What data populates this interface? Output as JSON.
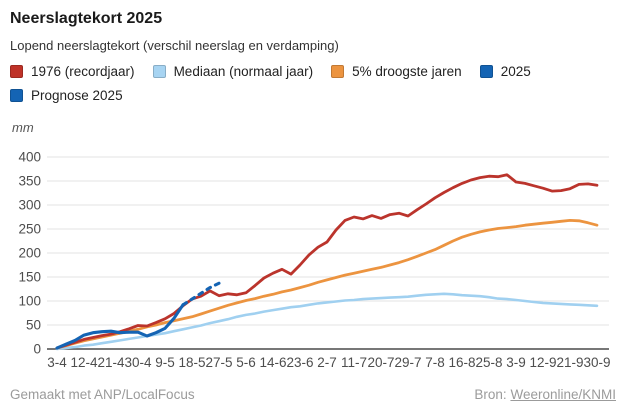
{
  "header": {
    "title": "Neerslagtekort 2025",
    "subtitle": "Lopend neerslagtekort (verschil neerslag en verdamping)"
  },
  "legend": [
    {
      "label": "1976 (recordjaar)",
      "color": "#bf3228"
    },
    {
      "label": "Mediaan (normaal jaar)",
      "color": "#a7d4f2"
    },
    {
      "label": "5% droogste jaren",
      "color": "#ec9440"
    },
    {
      "label": "2025",
      "color": "#1464b4"
    },
    {
      "label": "Prognose 2025",
      "color": "#1464b4"
    }
  ],
  "footer": {
    "credit": "Gemaakt met ANP/LocalFocus",
    "source_prefix": "Bron:",
    "source_link": "Weeronline/KNMI"
  },
  "chart_data": {
    "type": "line",
    "title": "Neerslagtekort 2025",
    "ylabel": "mm",
    "ylim": [
      0,
      400
    ],
    "grid": true,
    "y_ticks": [
      0,
      50,
      100,
      150,
      200,
      250,
      300,
      350,
      400
    ],
    "x_ticks": [
      {
        "label": "3-4",
        "day": 0
      },
      {
        "label": "12-4",
        "day": 9
      },
      {
        "label": "21-4",
        "day": 18
      },
      {
        "label": "30-4",
        "day": 27
      },
      {
        "label": "9-5",
        "day": 36
      },
      {
        "label": "18-5",
        "day": 45
      },
      {
        "label": "27-5",
        "day": 54
      },
      {
        "label": "5-6",
        "day": 63
      },
      {
        "label": "14-6",
        "day": 72
      },
      {
        "label": "23-6",
        "day": 81
      },
      {
        "label": "2-7",
        "day": 90
      },
      {
        "label": "11-7",
        "day": 99
      },
      {
        "label": "20-7",
        "day": 108
      },
      {
        "label": "29-7",
        "day": 117
      },
      {
        "label": "7-8",
        "day": 126
      },
      {
        "label": "16-8",
        "day": 135
      },
      {
        "label": "25-8",
        "day": 144
      },
      {
        "label": "3-9",
        "day": 153
      },
      {
        "label": "12-9",
        "day": 162
      },
      {
        "label": "21-9",
        "day": 171
      },
      {
        "label": "30-9",
        "day": 180
      }
    ],
    "series": [
      {
        "name": "Mediaan (normaal jaar)",
        "color": "#a0d0f0",
        "style": "solid",
        "width": 2.6,
        "days": [
          0,
          3,
          6,
          9,
          12,
          15,
          18,
          21,
          24,
          27,
          30,
          33,
          36,
          39,
          42,
          45,
          48,
          51,
          54,
          57,
          60,
          63,
          66,
          69,
          72,
          75,
          78,
          81,
          84,
          87,
          90,
          93,
          96,
          99,
          102,
          105,
          108,
          111,
          114,
          117,
          120,
          123,
          126,
          129,
          132,
          135,
          138,
          141,
          144,
          147,
          150,
          153,
          156,
          159,
          162,
          165,
          168,
          171,
          174,
          177,
          180
        ],
        "values": [
          0,
          2,
          4,
          7,
          9,
          12,
          15,
          18,
          21,
          24,
          27,
          30,
          33,
          37,
          41,
          45,
          49,
          54,
          58,
          62,
          67,
          71,
          74,
          78,
          81,
          84,
          87,
          89,
          92,
          95,
          97,
          99,
          101,
          102,
          104,
          105,
          106,
          107,
          108,
          109,
          111,
          113,
          114,
          115,
          114,
          112,
          111,
          110,
          108,
          105,
          104,
          102,
          100,
          98,
          96,
          95,
          94,
          93,
          92,
          91,
          90
        ]
      },
      {
        "name": "5% droogste jaren",
        "color": "#ec9440",
        "style": "solid",
        "width": 2.8,
        "days": [
          0,
          3,
          6,
          9,
          12,
          15,
          18,
          21,
          24,
          27,
          30,
          33,
          36,
          39,
          42,
          45,
          48,
          51,
          54,
          57,
          60,
          63,
          66,
          69,
          72,
          75,
          78,
          81,
          84,
          87,
          90,
          93,
          96,
          99,
          102,
          105,
          108,
          111,
          114,
          117,
          120,
          123,
          126,
          129,
          132,
          135,
          138,
          141,
          144,
          147,
          150,
          153,
          156,
          159,
          162,
          165,
          168,
          171,
          174,
          177,
          180
        ],
        "values": [
          2,
          7,
          12,
          17,
          21,
          25,
          29,
          33,
          37,
          41,
          46,
          50,
          55,
          59,
          63,
          67,
          73,
          79,
          85,
          91,
          96,
          101,
          105,
          110,
          114,
          119,
          123,
          128,
          133,
          139,
          144,
          149,
          154,
          158,
          162,
          166,
          170,
          175,
          180,
          186,
          193,
          200,
          207,
          216,
          225,
          233,
          239,
          244,
          248,
          251,
          253,
          255,
          258,
          260,
          262,
          264,
          266,
          268,
          267,
          263,
          258
        ]
      },
      {
        "name": "1976 (recordjaar)",
        "color": "#bb342c",
        "style": "solid",
        "width": 2.8,
        "days": [
          0,
          3,
          6,
          9,
          12,
          15,
          18,
          21,
          24,
          27,
          30,
          33,
          36,
          39,
          42,
          45,
          48,
          51,
          54,
          57,
          60,
          63,
          66,
          69,
          72,
          75,
          78,
          81,
          84,
          87,
          90,
          93,
          96,
          99,
          102,
          105,
          108,
          111,
          114,
          117,
          120,
          123,
          126,
          129,
          132,
          135,
          138,
          141,
          144,
          147,
          150,
          153,
          156,
          159,
          162,
          165,
          168,
          171,
          174,
          177,
          180
        ],
        "values": [
          2,
          8,
          14,
          20,
          24,
          28,
          31,
          36,
          42,
          49,
          48,
          55,
          63,
          74,
          90,
          104,
          110,
          121,
          111,
          115,
          113,
          117,
          132,
          148,
          158,
          166,
          156,
          175,
          196,
          212,
          223,
          248,
          268,
          275,
          271,
          278,
          272,
          280,
          283,
          277,
          290,
          302,
          315,
          326,
          336,
          345,
          352,
          357,
          360,
          359,
          363,
          348,
          345,
          340,
          335,
          329,
          330,
          334,
          343,
          344,
          341
        ]
      },
      {
        "name": "2025",
        "color": "#1464b4",
        "style": "solid",
        "width": 3.1,
        "days": [
          0,
          3,
          6,
          9,
          12,
          15,
          18,
          21,
          24,
          27,
          30,
          33,
          36,
          39,
          42
        ],
        "values": [
          2,
          10,
          18,
          29,
          34,
          36,
          37,
          34,
          35,
          35,
          27,
          34,
          43,
          64,
          92
        ]
      },
      {
        "name": "Prognose 2025",
        "color": "#1464b4",
        "style": "dashed",
        "width": 3.1,
        "days": [
          42,
          45,
          48,
          51,
          54
        ],
        "values": [
          92,
          104,
          116,
          128,
          137
        ]
      }
    ]
  }
}
